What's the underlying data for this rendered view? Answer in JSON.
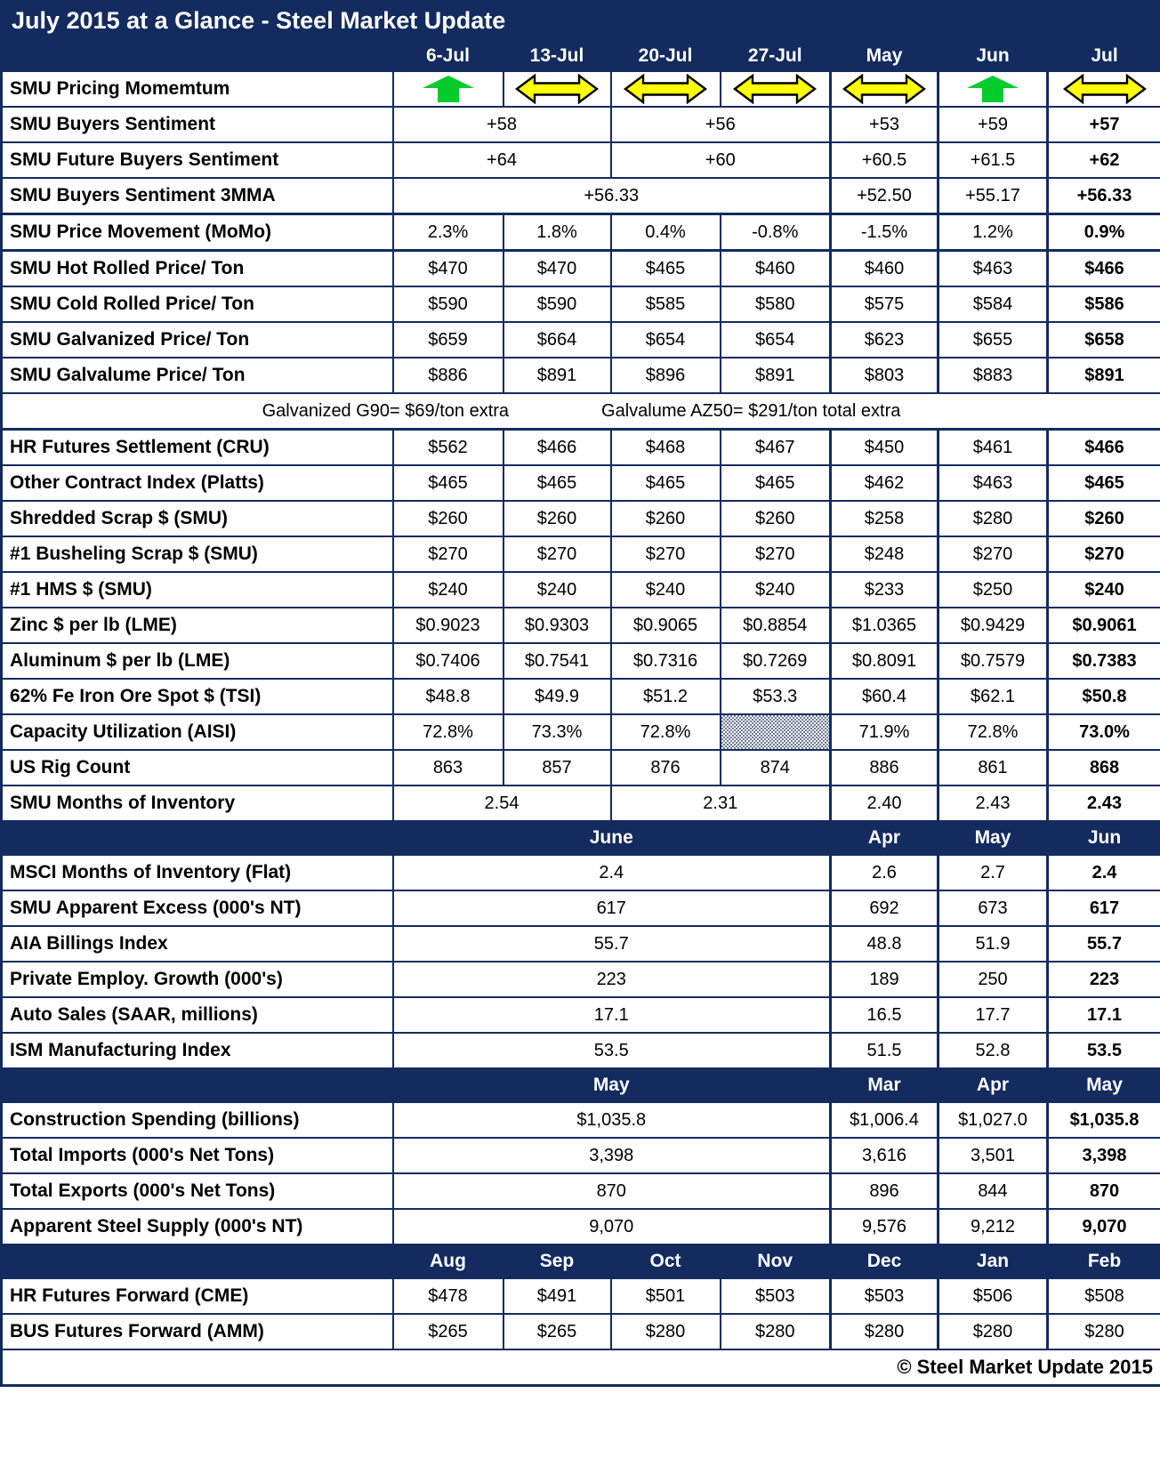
{
  "title": "July 2015 at a Glance - Steel Market Update",
  "footer": "© Steel Market Update 2015",
  "colors": {
    "navy": "#132B5F",
    "momentum_up": "#00CC2E",
    "momentum_sideways": "#FFFF00"
  },
  "columns": [
    "6-Jul",
    "13-Jul",
    "20-Jul",
    "27-Jul",
    "May",
    "Jun",
    "Jul"
  ],
  "rows": [
    {
      "type": "momentum",
      "label": "SMU Pricing Momemtum",
      "icons": [
        "up-arrow",
        "left-right-arrow",
        "left-right-arrow",
        "left-right-arrow",
        "left-right-arrow",
        "up-arrow",
        "left-right-arrow"
      ]
    },
    {
      "type": "data",
      "label": "SMU Buyers Sentiment",
      "cells": [
        {
          "text": "+58",
          "span": 2
        },
        {
          "text": "+56",
          "span": 2
        },
        {
          "text": "+53"
        },
        {
          "text": "+59"
        },
        {
          "text": "+57",
          "bold": true
        }
      ]
    },
    {
      "type": "data",
      "label": "SMU Future Buyers Sentiment",
      "cells": [
        {
          "text": "+64",
          "span": 2
        },
        {
          "text": "+60",
          "span": 2
        },
        {
          "text": "+60.5"
        },
        {
          "text": "+61.5"
        },
        {
          "text": "+62",
          "bold": true
        }
      ]
    },
    {
      "type": "data",
      "label": "SMU Buyers Sentiment 3MMA",
      "cells": [
        {
          "text": "+56.33",
          "span": 4
        },
        {
          "text": "+52.50"
        },
        {
          "text": "+55.17"
        },
        {
          "text": "+56.33",
          "bold": true
        }
      ]
    },
    {
      "type": "data",
      "label": "SMU Price Movement (MoMo)",
      "cells": [
        {
          "text": "2.3%"
        },
        {
          "text": "1.8%"
        },
        {
          "text": "0.4%"
        },
        {
          "text": "-0.8%"
        },
        {
          "text": "-1.5%"
        },
        {
          "text": "1.2%"
        },
        {
          "text": "0.9%",
          "bold": true
        }
      ]
    },
    {
      "type": "data",
      "label": "SMU Hot Rolled Price/ Ton",
      "cells": [
        {
          "text": "$470"
        },
        {
          "text": "$470"
        },
        {
          "text": "$465"
        },
        {
          "text": "$460"
        },
        {
          "text": "$460"
        },
        {
          "text": "$463"
        },
        {
          "text": "$466",
          "bold": true
        }
      ]
    },
    {
      "type": "data",
      "label": "SMU Cold Rolled Price/ Ton",
      "cells": [
        {
          "text": "$590"
        },
        {
          "text": "$590"
        },
        {
          "text": "$585"
        },
        {
          "text": "$580"
        },
        {
          "text": "$575"
        },
        {
          "text": "$584"
        },
        {
          "text": "$586",
          "bold": true
        }
      ]
    },
    {
      "type": "data",
      "label": "SMU Galvanized Price/ Ton",
      "cells": [
        {
          "text": "$659"
        },
        {
          "text": "$664"
        },
        {
          "text": "$654"
        },
        {
          "text": "$654"
        },
        {
          "text": "$623"
        },
        {
          "text": "$655"
        },
        {
          "text": "$658",
          "bold": true
        }
      ]
    },
    {
      "type": "data",
      "label": "SMU Galvalume Price/ Ton",
      "cells": [
        {
          "text": "$886"
        },
        {
          "text": "$891"
        },
        {
          "text": "$896"
        },
        {
          "text": "$891"
        },
        {
          "text": "$803"
        },
        {
          "text": "$883"
        },
        {
          "text": "$891",
          "bold": true
        }
      ]
    },
    {
      "type": "note",
      "parts": [
        "Galvanized G90= $69/ton extra",
        "Galvalume AZ50= $291/ton total extra"
      ]
    },
    {
      "type": "data",
      "label": "HR Futures Settlement (CRU)",
      "cells": [
        {
          "text": "$562"
        },
        {
          "text": "$466"
        },
        {
          "text": "$468"
        },
        {
          "text": "$467"
        },
        {
          "text": "$450"
        },
        {
          "text": "$461"
        },
        {
          "text": "$466",
          "bold": true
        }
      ]
    },
    {
      "type": "data",
      "label": "Other Contract Index (Platts)",
      "cells": [
        {
          "text": "$465"
        },
        {
          "text": "$465"
        },
        {
          "text": "$465"
        },
        {
          "text": "$465"
        },
        {
          "text": "$462"
        },
        {
          "text": "$463"
        },
        {
          "text": "$465",
          "bold": true
        }
      ]
    },
    {
      "type": "data",
      "label": "Shredded Scrap $ (SMU)",
      "cells": [
        {
          "text": "$260"
        },
        {
          "text": "$260"
        },
        {
          "text": "$260"
        },
        {
          "text": "$260"
        },
        {
          "text": "$258"
        },
        {
          "text": "$280"
        },
        {
          "text": "$260",
          "bold": true
        }
      ]
    },
    {
      "type": "data",
      "label": "#1 Busheling Scrap $ (SMU)",
      "cells": [
        {
          "text": "$270"
        },
        {
          "text": "$270"
        },
        {
          "text": "$270"
        },
        {
          "text": "$270"
        },
        {
          "text": "$248"
        },
        {
          "text": "$270"
        },
        {
          "text": "$270",
          "bold": true
        }
      ]
    },
    {
      "type": "data",
      "label": "#1 HMS $ (SMU)",
      "cells": [
        {
          "text": "$240"
        },
        {
          "text": "$240"
        },
        {
          "text": "$240"
        },
        {
          "text": "$240"
        },
        {
          "text": "$233"
        },
        {
          "text": "$250"
        },
        {
          "text": "$240",
          "bold": true
        }
      ]
    },
    {
      "type": "data",
      "label": "Zinc $ per lb (LME)",
      "cells": [
        {
          "text": "$0.9023"
        },
        {
          "text": "$0.9303"
        },
        {
          "text": "$0.9065"
        },
        {
          "text": "$0.8854"
        },
        {
          "text": "$1.0365"
        },
        {
          "text": "$0.9429"
        },
        {
          "text": "$0.9061",
          "bold": true
        }
      ]
    },
    {
      "type": "data",
      "label": "Aluminum $ per lb (LME)",
      "cells": [
        {
          "text": "$0.7406"
        },
        {
          "text": "$0.7541"
        },
        {
          "text": "$0.7316"
        },
        {
          "text": "$0.7269"
        },
        {
          "text": "$0.8091"
        },
        {
          "text": "$0.7579"
        },
        {
          "text": "$0.7383",
          "bold": true
        }
      ]
    },
    {
      "type": "data",
      "label": "62% Fe Iron Ore Spot $ (TSI)",
      "cells": [
        {
          "text": "$48.8"
        },
        {
          "text": "$49.9"
        },
        {
          "text": "$51.2"
        },
        {
          "text": "$53.3"
        },
        {
          "text": "$60.4"
        },
        {
          "text": "$62.1"
        },
        {
          "text": "$50.8",
          "bold": true
        }
      ]
    },
    {
      "type": "data",
      "label": "Capacity Utilization (AISI)",
      "cells": [
        {
          "text": "72.8%"
        },
        {
          "text": "73.3%"
        },
        {
          "text": "72.8%"
        },
        {
          "hatch": true
        },
        {
          "text": "71.9%"
        },
        {
          "text": "72.8%"
        },
        {
          "text": "73.0%",
          "bold": true
        }
      ]
    },
    {
      "type": "data",
      "label": "US Rig Count",
      "cells": [
        {
          "text": "863"
        },
        {
          "text": "857"
        },
        {
          "text": "876"
        },
        {
          "text": "874"
        },
        {
          "text": "886"
        },
        {
          "text": "861"
        },
        {
          "text": "868",
          "bold": true
        }
      ]
    },
    {
      "type": "data",
      "label": "SMU Months of Inventory",
      "cells": [
        {
          "text": "2.54",
          "span": 2
        },
        {
          "text": "2.31",
          "span": 2
        },
        {
          "text": "2.40"
        },
        {
          "text": "2.43"
        },
        {
          "text": "2.43",
          "bold": true
        }
      ]
    },
    {
      "type": "band",
      "cells": [
        {
          "text": "June",
          "span": 4
        },
        {
          "text": "Apr"
        },
        {
          "text": "May"
        },
        {
          "text": "Jun"
        }
      ]
    },
    {
      "type": "data",
      "label": "MSCI Months of Inventory (Flat)",
      "cells": [
        {
          "text": "2.4",
          "span": 4
        },
        {
          "text": "2.6"
        },
        {
          "text": "2.7"
        },
        {
          "text": "2.4",
          "bold": true
        }
      ]
    },
    {
      "type": "data",
      "label": "SMU Apparent Excess (000's NT)",
      "cells": [
        {
          "text": "617",
          "span": 4
        },
        {
          "text": "692"
        },
        {
          "text": "673"
        },
        {
          "text": "617",
          "bold": true
        }
      ]
    },
    {
      "type": "data",
      "label": "AIA Billings Index",
      "cells": [
        {
          "text": "55.7",
          "span": 4
        },
        {
          "text": "48.8"
        },
        {
          "text": "51.9"
        },
        {
          "text": "55.7",
          "bold": true
        }
      ]
    },
    {
      "type": "data",
      "label": "Private Employ. Growth (000's)",
      "cells": [
        {
          "text": "223",
          "span": 4
        },
        {
          "text": "189"
        },
        {
          "text": "250"
        },
        {
          "text": "223",
          "bold": true
        }
      ]
    },
    {
      "type": "data",
      "label": "Auto Sales (SAAR, millions)",
      "cells": [
        {
          "text": "17.1",
          "span": 4
        },
        {
          "text": "16.5"
        },
        {
          "text": "17.7"
        },
        {
          "text": "17.1",
          "bold": true
        }
      ]
    },
    {
      "type": "data",
      "label": "ISM Manufacturing Index",
      "cells": [
        {
          "text": "53.5",
          "span": 4
        },
        {
          "text": "51.5"
        },
        {
          "text": "52.8"
        },
        {
          "text": "53.5",
          "bold": true
        }
      ]
    },
    {
      "type": "band",
      "cells": [
        {
          "text": "May",
          "span": 4
        },
        {
          "text": "Mar"
        },
        {
          "text": "Apr"
        },
        {
          "text": "May"
        }
      ]
    },
    {
      "type": "data",
      "label": "Construction Spending (billions)",
      "cells": [
        {
          "text": "$1,035.8",
          "span": 4
        },
        {
          "text": "$1,006.4"
        },
        {
          "text": "$1,027.0"
        },
        {
          "text": "$1,035.8",
          "bold": true
        }
      ]
    },
    {
      "type": "data",
      "label": "Total Imports (000's Net Tons)",
      "cells": [
        {
          "text": "3,398",
          "span": 4
        },
        {
          "text": "3,616"
        },
        {
          "text": "3,501"
        },
        {
          "text": "3,398",
          "bold": true
        }
      ]
    },
    {
      "type": "data",
      "label": "Total Exports (000's Net Tons)",
      "cells": [
        {
          "text": "870",
          "span": 4
        },
        {
          "text": "896"
        },
        {
          "text": "844"
        },
        {
          "text": "870",
          "bold": true
        }
      ]
    },
    {
      "type": "data",
      "label": "Apparent Steel Supply (000's NT)",
      "cells": [
        {
          "text": "9,070",
          "span": 4
        },
        {
          "text": "9,576"
        },
        {
          "text": "9,212"
        },
        {
          "text": "9,070",
          "bold": true
        }
      ]
    },
    {
      "type": "band",
      "cells": [
        {
          "text": "Aug"
        },
        {
          "text": "Sep"
        },
        {
          "text": "Oct"
        },
        {
          "text": "Nov"
        },
        {
          "text": "Dec"
        },
        {
          "text": "Jan"
        },
        {
          "text": "Feb"
        }
      ]
    },
    {
      "type": "data",
      "label": "HR Futures Forward (CME)",
      "cells": [
        {
          "text": "$478"
        },
        {
          "text": "$491"
        },
        {
          "text": "$501"
        },
        {
          "text": "$503"
        },
        {
          "text": "$503"
        },
        {
          "text": "$506"
        },
        {
          "text": "$508"
        }
      ]
    },
    {
      "type": "data",
      "label": "BUS Futures Forward (AMM)",
      "cells": [
        {
          "text": "$265"
        },
        {
          "text": "$265"
        },
        {
          "text": "$280"
        },
        {
          "text": "$280"
        },
        {
          "text": "$280"
        },
        {
          "text": "$280"
        },
        {
          "text": "$280"
        }
      ]
    }
  ]
}
